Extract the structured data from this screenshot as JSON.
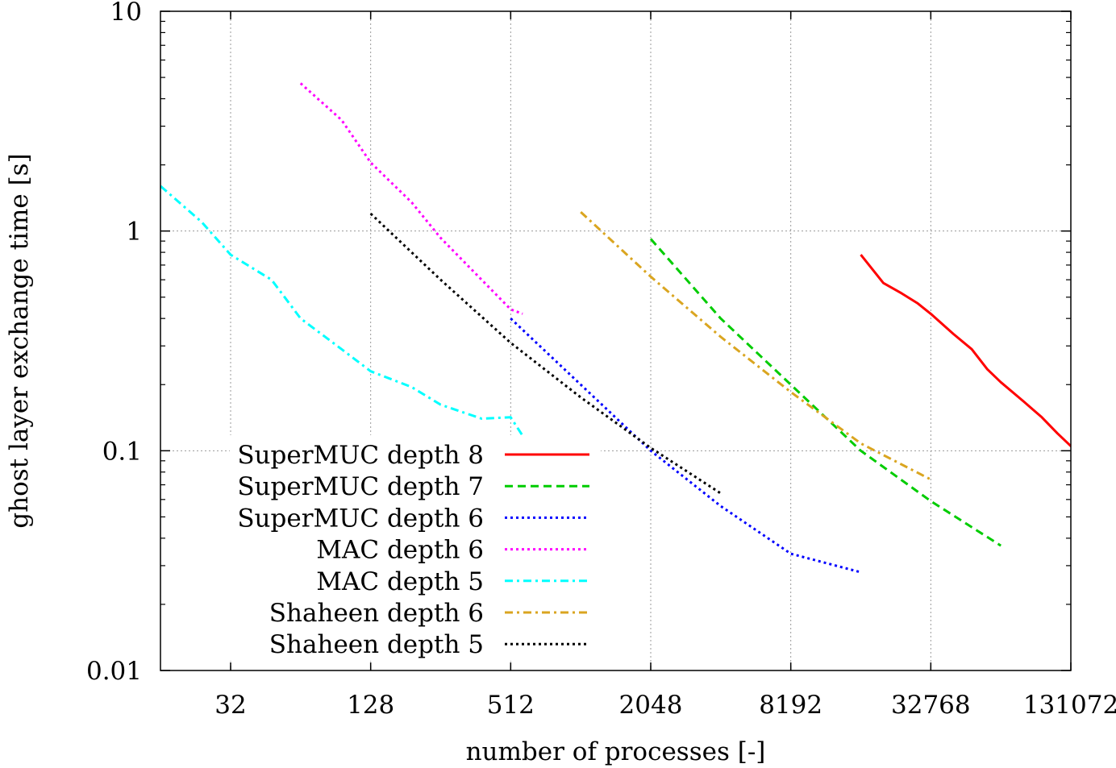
{
  "chart_data": {
    "type": "line",
    "title": "",
    "xlabel": "number of processes [-]",
    "ylabel": "ghost layer exchange time [s]",
    "x_scale": "log2",
    "y_scale": "log10",
    "xlim": [
      16,
      140000
    ],
    "ylim": [
      0.01,
      10
    ],
    "x_ticks": [
      {
        "value": 32,
        "label": "32"
      },
      {
        "value": 128,
        "label": "128"
      },
      {
        "value": 512,
        "label": "512"
      },
      {
        "value": 2048,
        "label": "2048"
      },
      {
        "value": 8192,
        "label": "8192"
      },
      {
        "value": 32768,
        "label": "32768"
      },
      {
        "value": 131072,
        "label": "131072"
      }
    ],
    "y_ticks": [
      {
        "value": 0.01,
        "label": "0.01"
      },
      {
        "value": 0.1,
        "label": "0.1"
      },
      {
        "value": 1,
        "label": "1"
      },
      {
        "value": 10,
        "label": "10"
      }
    ],
    "grid": true,
    "legend_position": "bottom-left",
    "series": [
      {
        "name": "SuperMUC depth 8",
        "color": "#ff0000",
        "dash": "solid",
        "x": [
          16384,
          20480,
          24576,
          28672,
          32768,
          40960,
          49152,
          57344,
          65536,
          81920,
          98304,
          114688,
          131072,
          147456
        ],
        "y": [
          0.78,
          0.58,
          0.52,
          0.47,
          0.42,
          0.34,
          0.29,
          0.235,
          0.205,
          0.168,
          0.142,
          0.12,
          0.105,
          0.098
        ]
      },
      {
        "name": "SuperMUC depth 7",
        "color": "#00cc00",
        "dash": "dashed",
        "x": [
          2048,
          4096,
          8192,
          16384,
          32768,
          65536
        ],
        "y": [
          0.92,
          0.4,
          0.2,
          0.1,
          0.059,
          0.037
        ]
      },
      {
        "name": "SuperMUC depth 6",
        "color": "#0000ff",
        "dash": "dotted",
        "x": [
          512,
          1024,
          2048,
          4096,
          8192,
          16384
        ],
        "y": [
          0.4,
          0.2,
          0.1,
          0.056,
          0.034,
          0.028
        ]
      },
      {
        "name": "MAC depth 6",
        "color": "#ff00ff",
        "dash": "dotted",
        "x": [
          64,
          96,
          128,
          192,
          256,
          384,
          512,
          576
        ],
        "y": [
          4.7,
          3.2,
          2.05,
          1.35,
          0.93,
          0.6,
          0.44,
          0.42
        ]
      },
      {
        "name": "MAC depth 5",
        "color": "#00ffff",
        "dash": "dashdot",
        "x": [
          16,
          24,
          32,
          48,
          64,
          96,
          128,
          192,
          256,
          384,
          512,
          576
        ],
        "y": [
          1.6,
          1.1,
          0.78,
          0.6,
          0.4,
          0.29,
          0.23,
          0.195,
          0.162,
          0.14,
          0.142,
          0.117
        ]
      },
      {
        "name": "Shaheen depth 6",
        "color": "#daa520",
        "dash": "dashdot",
        "x": [
          1024,
          2048,
          4096,
          8192,
          16384,
          32768
        ],
        "y": [
          1.22,
          0.62,
          0.33,
          0.185,
          0.108,
          0.074
        ]
      },
      {
        "name": "Shaheen depth 5",
        "color": "#000000",
        "dash": "dotted",
        "x": [
          128,
          256,
          512,
          1024,
          2048,
          4096
        ],
        "y": [
          1.2,
          0.6,
          0.31,
          0.175,
          0.103,
          0.064
        ]
      }
    ]
  }
}
